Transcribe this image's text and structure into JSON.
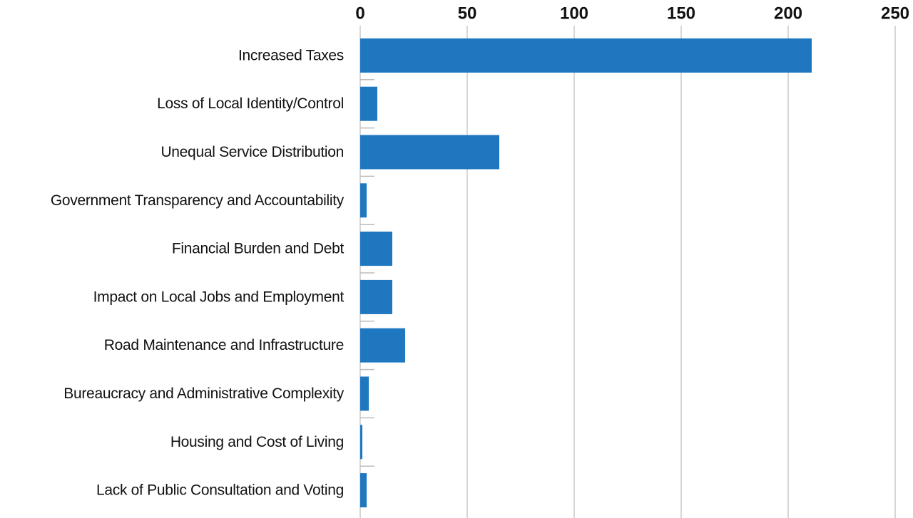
{
  "chart_data": {
    "type": "bar",
    "orientation": "horizontal",
    "categories": [
      "Increased Taxes",
      "Loss of Local Identity/Control",
      "Unequal Service Distribution",
      "Government Transparency and Accountability",
      "Financial Burden and Debt",
      "Impact on Local Jobs and Employment",
      "Road Maintenance and Infrastructure",
      "Bureaucracy and Administrative Complexity",
      "Housing and Cost of Living",
      "Lack of Public Consultation and Voting"
    ],
    "values": [
      211,
      8,
      65,
      3,
      15,
      15,
      21,
      4,
      1,
      3
    ],
    "color": "#1f77c0",
    "xlim": [
      0,
      250
    ],
    "xticks": [
      0,
      50,
      100,
      150,
      200,
      250
    ],
    "grid": true
  }
}
